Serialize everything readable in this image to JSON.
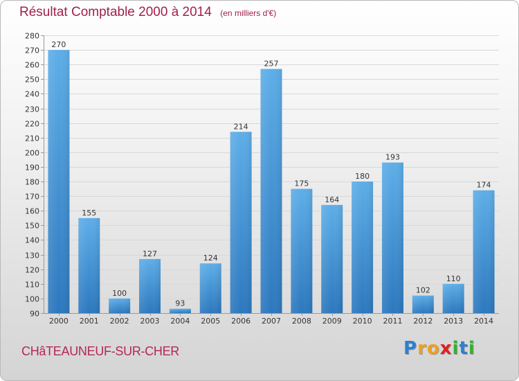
{
  "title": {
    "main": "Résultat Comptable 2000 à 2014",
    "sub": "(en milliers d'€)"
  },
  "town": "CHâTEAUNEUF-SUR-CHER",
  "logo": {
    "letters": [
      {
        "ch": "P",
        "color": "#2e7fd0"
      },
      {
        "ch": "r",
        "color": "#f0a020"
      },
      {
        "ch": "o",
        "color": "#f0a020"
      },
      {
        "ch": "x",
        "color": "#e02020"
      },
      {
        "ch": "i",
        "color": "#38b030"
      },
      {
        "ch": "t",
        "color": "#2e7fd0"
      },
      {
        "ch": "i",
        "color": "#38b030"
      }
    ]
  },
  "chart_data": {
    "type": "bar",
    "title": "Résultat Comptable 2000 à 2014",
    "subtitle": "(en milliers d'€)",
    "xlabel": "",
    "ylabel": "",
    "categories": [
      "2000",
      "2001",
      "2002",
      "2003",
      "2004",
      "2005",
      "2006",
      "2007",
      "2008",
      "2009",
      "2010",
      "2011",
      "2012",
      "2013",
      "2014"
    ],
    "values": [
      270,
      155,
      100,
      127,
      93,
      124,
      214,
      257,
      175,
      164,
      180,
      193,
      102,
      110,
      174
    ],
    "ylim": [
      90,
      280
    ],
    "ytick_step": 10,
    "grid": true,
    "bar_color": "#3c8fd4"
  }
}
